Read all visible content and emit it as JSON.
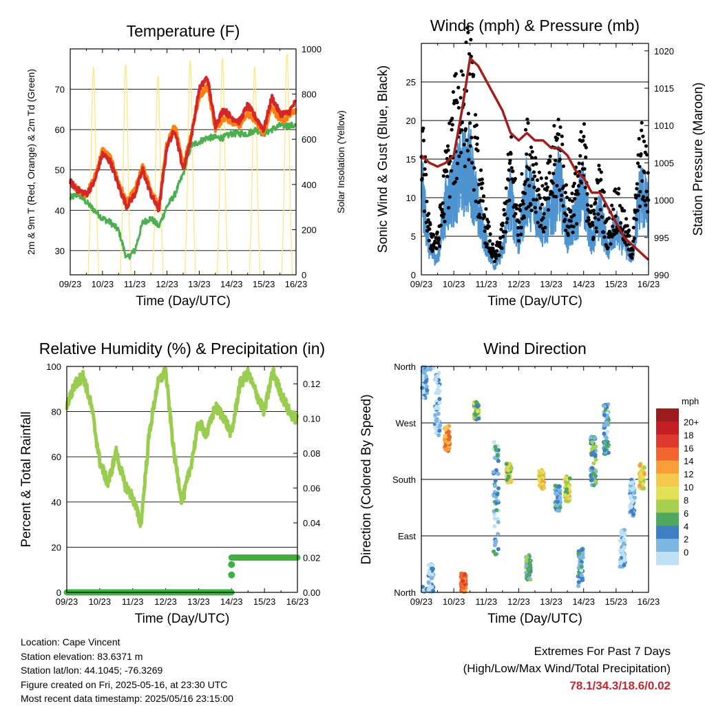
{
  "x_ticks": [
    "09/23",
    "10/23",
    "11/23",
    "12/23",
    "13/23",
    "14/23",
    "15/23",
    "16/23"
  ],
  "info": {
    "location": "Location: Cape Vincent",
    "elevation": "Station elevation: 83.6371 m",
    "latlon": "Station lat/lon: 44.1045; -76.3269",
    "created": "Figure created on Fri, 2025-05-16, at 23:30 UTC",
    "recent": "Most recent data timestamp: 2025/05/16 23:15:00"
  },
  "extremes": {
    "title": "Extremes For Past 7 Days",
    "subtitle": "(High/Low/Max Wind/Total Precipitation)",
    "values": "78.1/34.3/18.6/0.02"
  },
  "chart_data": [
    {
      "type": "line",
      "title": "Temperature (F)",
      "xlabel": "Time (Day/UTC)",
      "ylabel": "2m & 9m T (Red, Orange) & 2m Td (Green)",
      "ylabel_right": "Solar Insolation (Yellow)",
      "x": [
        9.0,
        9.25,
        9.5,
        9.75,
        10.0,
        10.25,
        10.5,
        10.75,
        11.0,
        11.25,
        11.5,
        11.75,
        12.0,
        12.25,
        12.5,
        12.75,
        13.0,
        13.25,
        13.5,
        13.75,
        14.0,
        14.25,
        14.5,
        14.75,
        15.0,
        15.25,
        15.5,
        15.75,
        16.0
      ],
      "ylim": [
        24,
        80
      ],
      "ylim_right": [
        0,
        1000
      ],
      "yticks": [
        30,
        40,
        50,
        60,
        70
      ],
      "yticks_right": [
        0,
        200,
        400,
        600,
        800,
        1000
      ],
      "series": [
        {
          "name": "2m T",
          "color": "#d62728",
          "values": [
            47,
            45,
            44,
            47,
            54,
            52,
            46,
            41,
            44,
            50,
            44,
            40,
            56,
            60,
            50,
            58,
            70,
            73,
            61,
            65,
            63,
            62,
            66,
            63,
            60,
            68,
            64,
            64,
            67
          ]
        },
        {
          "name": "9m T",
          "color": "#ff7f0e",
          "values": [
            47,
            45,
            44,
            48,
            55,
            53,
            47,
            42,
            45,
            51,
            45,
            41,
            57,
            61,
            51,
            59,
            68,
            71,
            60,
            63,
            62,
            61,
            64,
            62,
            59,
            66,
            62,
            63,
            65
          ]
        },
        {
          "name": "2m Td",
          "color": "#4caf50",
          "values": [
            43,
            44,
            42,
            40,
            38,
            37,
            35,
            28,
            30,
            37,
            38,
            36,
            41,
            44,
            49,
            56,
            57,
            58,
            58,
            58,
            59,
            59,
            59,
            60,
            59,
            60,
            61,
            61,
            61
          ]
        }
      ],
      "solar": {
        "name": "Solar Insolation",
        "color": "#ffe680",
        "peaks": [
          {
            "day": 9.72,
            "value": 920
          },
          {
            "day": 10.72,
            "value": 930
          },
          {
            "day": 11.72,
            "value": 880
          },
          {
            "day": 12.72,
            "value": 950
          },
          {
            "day": 13.72,
            "value": 960
          },
          {
            "day": 14.72,
            "value": 920
          },
          {
            "day": 15.72,
            "value": 980
          }
        ]
      }
    },
    {
      "type": "line",
      "title": "Winds (mph) & Pressure (mb)",
      "xlabel": "Time (Day/UTC)",
      "ylabel": "Sonic Wind & Gust (Blue, Black)",
      "ylabel_right": "Station Pressure (Maroon)",
      "x": [
        9.0,
        9.25,
        9.5,
        9.75,
        10.0,
        10.25,
        10.5,
        10.75,
        11.0,
        11.25,
        11.5,
        11.75,
        12.0,
        12.25,
        12.5,
        12.75,
        13.0,
        13.25,
        13.5,
        13.75,
        14.0,
        14.25,
        14.5,
        14.75,
        15.0,
        15.25,
        15.5,
        15.75,
        16.0
      ],
      "ylim": [
        0,
        30
      ],
      "ylim_right": [
        990,
        1021
      ],
      "yticks": [
        0,
        5,
        10,
        15,
        20,
        25
      ],
      "yticks_right": [
        990,
        995,
        1000,
        1005,
        1010,
        1015,
        1020
      ],
      "series": [
        {
          "name": "Sonic Wind",
          "color": "#4d94d1",
          "values": [
            12,
            3,
            2,
            9,
            11,
            13,
            14,
            8,
            4,
            1,
            3,
            10,
            4,
            11,
            9,
            6,
            8,
            12,
            5,
            7,
            11,
            4,
            8,
            3,
            6,
            4,
            2,
            11,
            8
          ]
        },
        {
          "name": "Gust",
          "color": "#000000",
          "values": [
            17,
            5,
            4,
            12,
            18,
            22,
            24,
            12,
            6,
            2,
            5,
            14,
            6,
            15,
            13,
            8,
            12,
            17,
            7,
            10,
            15,
            6,
            11,
            5,
            9,
            6,
            3,
            15,
            11
          ]
        },
        {
          "name": "Station Pressure",
          "color": "#a31d1d",
          "values": [
            1006,
            1005,
            1004.5,
            1005,
            1006,
            1012,
            1019,
            1018,
            1016,
            1014,
            1012,
            1009,
            1008,
            1009,
            1008,
            1008,
            1007,
            1007,
            1006,
            1004,
            1003,
            1001,
            1001,
            999,
            997,
            995,
            994,
            993,
            992
          ]
        }
      ]
    },
    {
      "type": "line",
      "title": "Relative Humidity (%) & Precipitation (in)",
      "xlabel": "Time (Day/UTC)",
      "ylabel": "Percent & Total Rainfall",
      "x": [
        9.0,
        9.25,
        9.5,
        9.75,
        10.0,
        10.25,
        10.5,
        10.75,
        11.0,
        11.25,
        11.5,
        11.75,
        12.0,
        12.25,
        12.5,
        12.75,
        13.0,
        13.25,
        13.5,
        13.75,
        14.0,
        14.25,
        14.5,
        14.75,
        15.0,
        15.25,
        15.5,
        15.75,
        16.0
      ],
      "ylim": [
        0,
        100
      ],
      "ylim_right": [
        0,
        0.13
      ],
      "yticks": [
        0,
        20,
        40,
        60,
        80,
        100
      ],
      "yticks_right": [
        0.0,
        0.02,
        0.04,
        0.06,
        0.08,
        0.1,
        0.12
      ],
      "series": [
        {
          "name": "Relative Humidity",
          "color": "#9acd4f",
          "values": [
            83,
            92,
            96,
            82,
            58,
            48,
            62,
            48,
            42,
            30,
            70,
            92,
            98,
            62,
            40,
            55,
            75,
            70,
            82,
            78,
            70,
            92,
            97,
            88,
            80,
            98,
            88,
            80,
            76
          ]
        },
        {
          "name": "Total Precipitation",
          "color": "#3cb043",
          "values": [
            0,
            0,
            0,
            0,
            0,
            0,
            0,
            0,
            0,
            0,
            0,
            0,
            0,
            0,
            0,
            0,
            0,
            0,
            0,
            0,
            0.02,
            0.02,
            0.02,
            0.02,
            0.02,
            0.02,
            0.02,
            0.02,
            0.02
          ]
        }
      ]
    },
    {
      "type": "scatter",
      "title": "Wind Direction",
      "xlabel": "Time (Day/UTC)",
      "ylabel": "Direction (Colored By Speed)",
      "ylim": [
        0,
        360
      ],
      "ytick_labels": [
        "North",
        "East",
        "South",
        "West",
        "North"
      ],
      "legend": {
        "title": "mph",
        "labels": [
          "20+",
          "18",
          "16",
          "14",
          "12",
          "10",
          "8",
          "6",
          "4",
          "2",
          "0"
        ],
        "colors": [
          "#9b1b1e",
          "#c41e24",
          "#e03a2e",
          "#f0642e",
          "#f99c3a",
          "#f4c84c",
          "#e2e055",
          "#a8cf4e",
          "#4ea85e",
          "#3e7fc3",
          "#7db6e3",
          "#bfe0f5"
        ],
        "position": "right"
      },
      "clusters": [
        {
          "day": 9.1,
          "dir_center": 340,
          "spread": 30,
          "speed": 3
        },
        {
          "day": 9.3,
          "dir_center": 20,
          "spread": 25,
          "speed": 2
        },
        {
          "day": 9.5,
          "dir_center": 300,
          "spread": 50,
          "speed": 2
        },
        {
          "day": 9.8,
          "dir_center": 245,
          "spread": 20,
          "speed": 15
        },
        {
          "day": 10.3,
          "dir_center": 15,
          "spread": 15,
          "speed": 17
        },
        {
          "day": 10.7,
          "dir_center": 290,
          "spread": 15,
          "speed": 8
        },
        {
          "day": 11.3,
          "dir_center": 150,
          "spread": 90,
          "speed": 4
        },
        {
          "day": 11.7,
          "dir_center": 190,
          "spread": 15,
          "speed": 10
        },
        {
          "day": 12.3,
          "dir_center": 40,
          "spread": 20,
          "speed": 6
        },
        {
          "day": 12.7,
          "dir_center": 180,
          "spread": 15,
          "speed": 12
        },
        {
          "day": 13.2,
          "dir_center": 150,
          "spread": 20,
          "speed": 5
        },
        {
          "day": 13.5,
          "dir_center": 165,
          "spread": 20,
          "speed": 10
        },
        {
          "day": 13.9,
          "dir_center": 40,
          "spread": 30,
          "speed": 4
        },
        {
          "day": 14.3,
          "dir_center": 210,
          "spread": 40,
          "speed": 6
        },
        {
          "day": 14.7,
          "dir_center": 260,
          "spread": 40,
          "speed": 4
        },
        {
          "day": 15.2,
          "dir_center": 70,
          "spread": 30,
          "speed": 2
        },
        {
          "day": 15.5,
          "dir_center": 150,
          "spread": 30,
          "speed": 2
        },
        {
          "day": 15.8,
          "dir_center": 185,
          "spread": 20,
          "speed": 12
        }
      ]
    }
  ]
}
